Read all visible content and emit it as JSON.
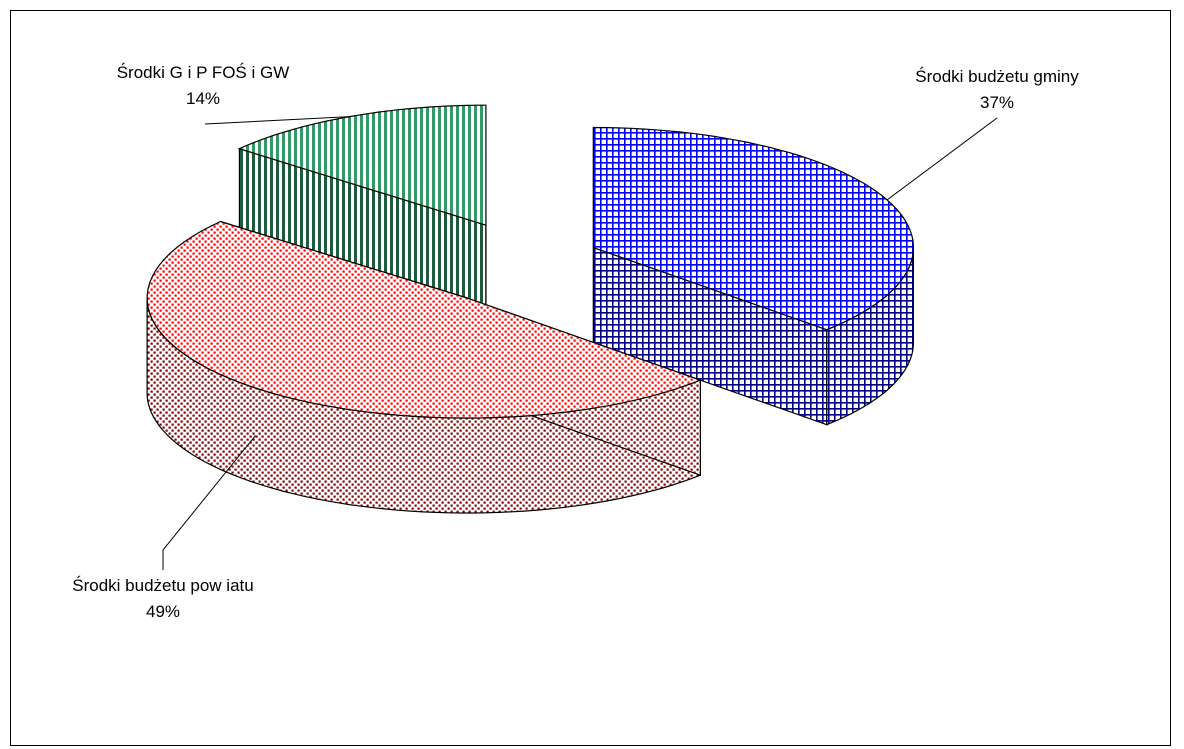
{
  "chart_data": {
    "type": "pie",
    "style": "3d-exploded",
    "title": "",
    "categories": [
      "Środki budżetu gminy",
      "Środki budżetu pow iatu",
      "Środki G i P FOŚ i GW"
    ],
    "values": [
      37,
      49,
      14
    ],
    "labels": [
      {
        "name": "Środki budżetu gminy",
        "percent": "37%"
      },
      {
        "name": "Środki budżetu pow iatu",
        "percent": "49%"
      },
      {
        "name": "Środki G i P FOŚ i GW",
        "percent": "14%"
      }
    ],
    "colors": [
      {
        "top": "#0000ff",
        "side": "#000080",
        "background": "#ffffff",
        "pattern": "grid"
      },
      {
        "top": "#ff0000",
        "side": "#800000",
        "background": "#ffffff",
        "pattern": "dots"
      },
      {
        "top": "#339966",
        "side": "#1e5a3c",
        "background": "#ffffff",
        "pattern": "vertical-stripes"
      }
    ],
    "legend": "none",
    "data_labels": "outside-with-leader-lines"
  }
}
